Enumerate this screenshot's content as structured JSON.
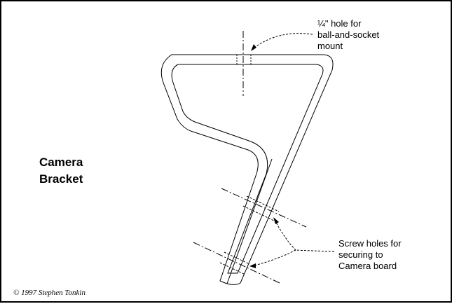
{
  "title": {
    "line1": "Camera",
    "line2": "Bracket"
  },
  "annotations": {
    "hole": {
      "line1": "¼\" hole for",
      "line2": "ball-and-socket",
      "line3": "mount"
    },
    "screw": {
      "line1": "Screw holes for",
      "line2": "securing to",
      "line3": "Camera board"
    }
  },
  "copyright": "© 1997 Stephen Tonkin",
  "colors": {
    "background": "#ffffff",
    "ink": "#000000"
  }
}
